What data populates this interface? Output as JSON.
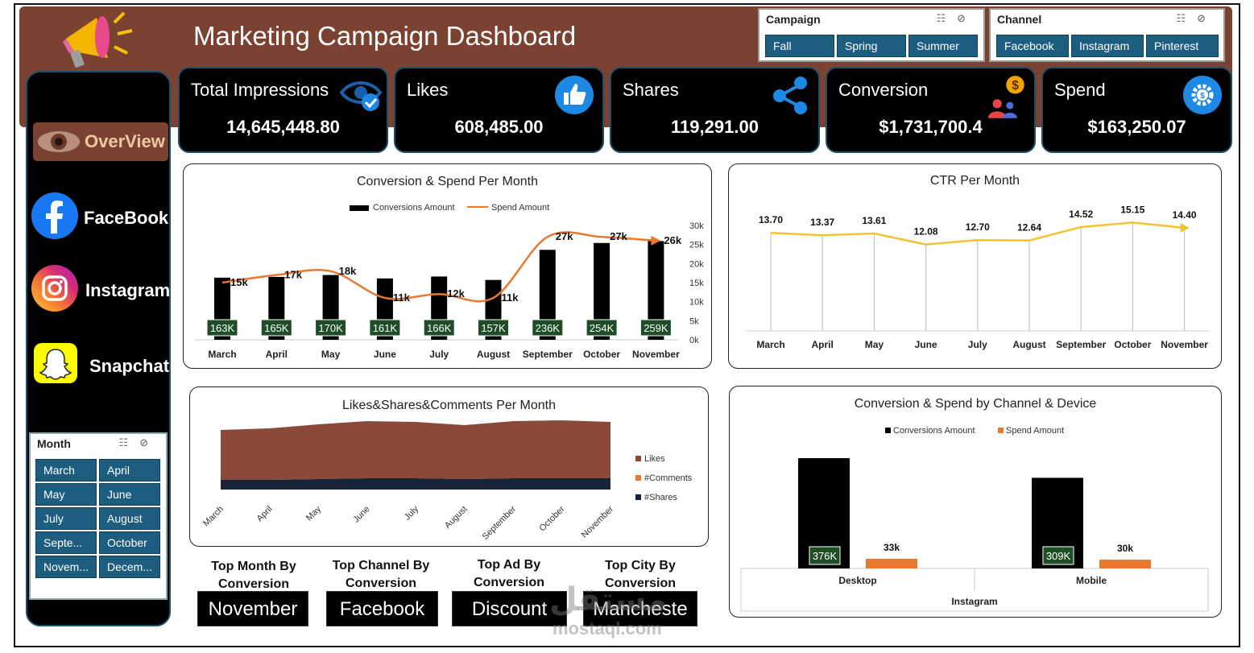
{
  "title": "Marketing Campaign Dashboard",
  "slicers": {
    "campaign": {
      "title": "Campaign",
      "options": [
        "Fall",
        "Spring",
        "Summer"
      ]
    },
    "channel": {
      "title": "Channel",
      "options": [
        "Facebook",
        "Instagram",
        "Pinterest"
      ]
    },
    "month": {
      "title": "Month",
      "options": [
        "March",
        "April",
        "May",
        "June",
        "July",
        "August",
        "Septe...",
        "October",
        "Novem...",
        "Decem..."
      ]
    }
  },
  "nav": {
    "overview": "OverView",
    "facebook": "FaceBook",
    "instagram": "Instagram",
    "snapchat": "Snapchat"
  },
  "kpis": {
    "impressions": {
      "label": "Total Impressions",
      "value": "14,645,448.80",
      "icon": "eye-check-icon"
    },
    "likes": {
      "label": "Likes",
      "value": "608,485.00",
      "icon": "thumbs-up-icon"
    },
    "shares": {
      "label": "Shares",
      "value": "119,291.00",
      "icon": "share-icon"
    },
    "conversion": {
      "label": "Conversion",
      "value": "$1,731,700.4",
      "icon": "conversion-icon"
    },
    "spend": {
      "label": "Spend",
      "value": "$163,250.07",
      "icon": "spend-gear-icon"
    }
  },
  "colors": {
    "brand": "#7b4232",
    "slicer": "#1d5d80",
    "orange": "#e8792f",
    "yellow": "#f2c230",
    "label_green": "#1f4d27"
  },
  "chart_data": [
    {
      "id": "conv-spend-month",
      "type": "bar",
      "title": "Conversion & Spend Per Month",
      "categories": [
        "March",
        "April",
        "May",
        "June",
        "July",
        "August",
        "September",
        "October",
        "November"
      ],
      "series": [
        {
          "name": "Conversions Amount",
          "type": "bar",
          "values": [
            163,
            165,
            170,
            161,
            166,
            157,
            236,
            254,
            259
          ],
          "labels": [
            "163K",
            "165K",
            "170K",
            "161K",
            "166K",
            "157K",
            "236K",
            "254K",
            "259K"
          ]
        },
        {
          "name": "Spend Amount",
          "type": "line",
          "values": [
            15,
            17,
            18,
            11,
            12,
            11,
            27,
            27,
            26
          ],
          "labels": [
            "15k",
            "17k",
            "18k",
            "11k",
            "12k",
            "11k",
            "27k",
            "27k",
            "26k"
          ]
        }
      ],
      "y2_ticks": [
        "0k",
        "5k",
        "10k",
        "15k",
        "20k",
        "25k",
        "30k"
      ],
      "y2lim": [
        0,
        30
      ],
      "legend": "top"
    },
    {
      "id": "ctr-month",
      "type": "line",
      "title": "CTR Per Month",
      "categories": [
        "March",
        "April",
        "May",
        "June",
        "July",
        "August",
        "September",
        "October",
        "November"
      ],
      "values": [
        13.7,
        13.37,
        13.61,
        12.08,
        12.7,
        12.64,
        14.52,
        15.15,
        14.4
      ],
      "labels": [
        "13.70",
        "13.37",
        "13.61",
        "12.08",
        "12.70",
        "12.64",
        "14.52",
        "15.15",
        "14.40"
      ]
    },
    {
      "id": "likes-shares-comments",
      "type": "area",
      "title": "Likes&Shares&Comments Per Month",
      "categories": [
        "March",
        "April",
        "May",
        "June",
        "July",
        "August",
        "September",
        "October",
        "November"
      ],
      "series": [
        {
          "name": "Likes",
          "values": [
            62,
            64,
            68,
            71,
            70,
            67,
            71,
            72,
            70
          ]
        },
        {
          "name": "#Comments",
          "values": [
            3,
            3,
            3,
            3,
            3,
            3,
            3,
            3,
            3
          ]
        },
        {
          "name": "#Shares",
          "values": [
            12,
            12,
            13,
            14,
            14,
            13,
            14,
            14,
            14
          ]
        }
      ],
      "legend": "right"
    },
    {
      "id": "conv-spend-channel-device",
      "type": "bar",
      "title": "Conversion & Spend by Channel & Device",
      "categories": [
        "Desktop",
        "Mobile"
      ],
      "group": "Instagram",
      "series": [
        {
          "name": "Conversions Amount",
          "values": [
            376,
            309
          ],
          "labels": [
            "376K",
            "309K"
          ]
        },
        {
          "name": "Spend Amount",
          "values": [
            33,
            30
          ],
          "labels": [
            "33k",
            "30k"
          ]
        }
      ],
      "legend": "top"
    }
  ],
  "tops": {
    "month": {
      "label": "Top Month By Conversion",
      "value": "November"
    },
    "channel": {
      "label": "Top Channel By Conversion",
      "value": "Facebook"
    },
    "ad": {
      "label": "Top Ad By Conversion",
      "value": "Discount"
    },
    "city": {
      "label": "Top City By Conversion",
      "value": "Mancheste"
    }
  },
  "watermark": {
    "arabic": "مستقل",
    "latin": "mostaql.com"
  }
}
